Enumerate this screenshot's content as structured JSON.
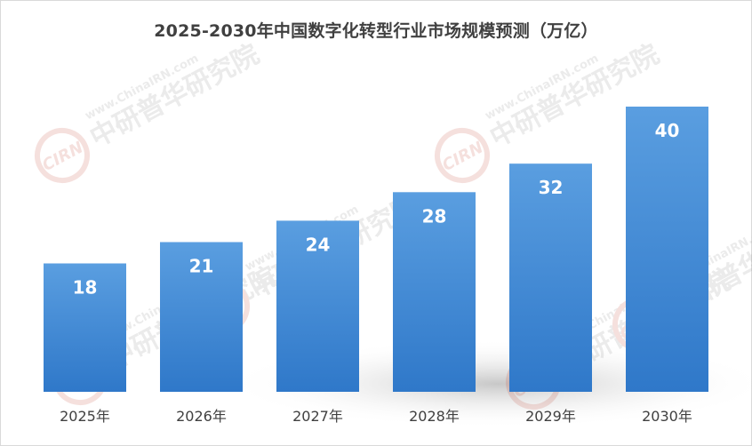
{
  "chart_data": {
    "type": "bar",
    "title": "2025-2030年中国数字化转型行业市场规模预测（万亿）",
    "categories": [
      "2025年",
      "2026年",
      "2027年",
      "2028年",
      "2029年",
      "2030年"
    ],
    "values": [
      18,
      21,
      24,
      28,
      32,
      40
    ],
    "ylim": [
      0,
      42
    ],
    "xlabel": "",
    "ylabel": "",
    "grid": false,
    "legend": "none",
    "bar_color": "#4a8fd6",
    "bar_color_top": "#5a9ee0",
    "bar_color_bottom": "#2f78c9",
    "label_color": "#ffffff"
  },
  "watermarks": [
    "CIRN",
    "中研普华研究院",
    "www.ChinaIRN.com"
  ]
}
